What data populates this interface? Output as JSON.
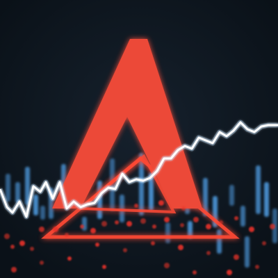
{
  "colors": {
    "background": "#0c141c",
    "background_glow": "#16212d",
    "triangle_fill": "#ec4a38",
    "triangle_glow": "#ff5a42",
    "outline": "#ff4a34",
    "line": "#ffffff",
    "line_glow": "#9fd0ff",
    "blue_bars": "#4f9de4",
    "red_dots": "#e8322a"
  },
  "icons": {
    "logo": "triangle-logo-icon"
  }
}
